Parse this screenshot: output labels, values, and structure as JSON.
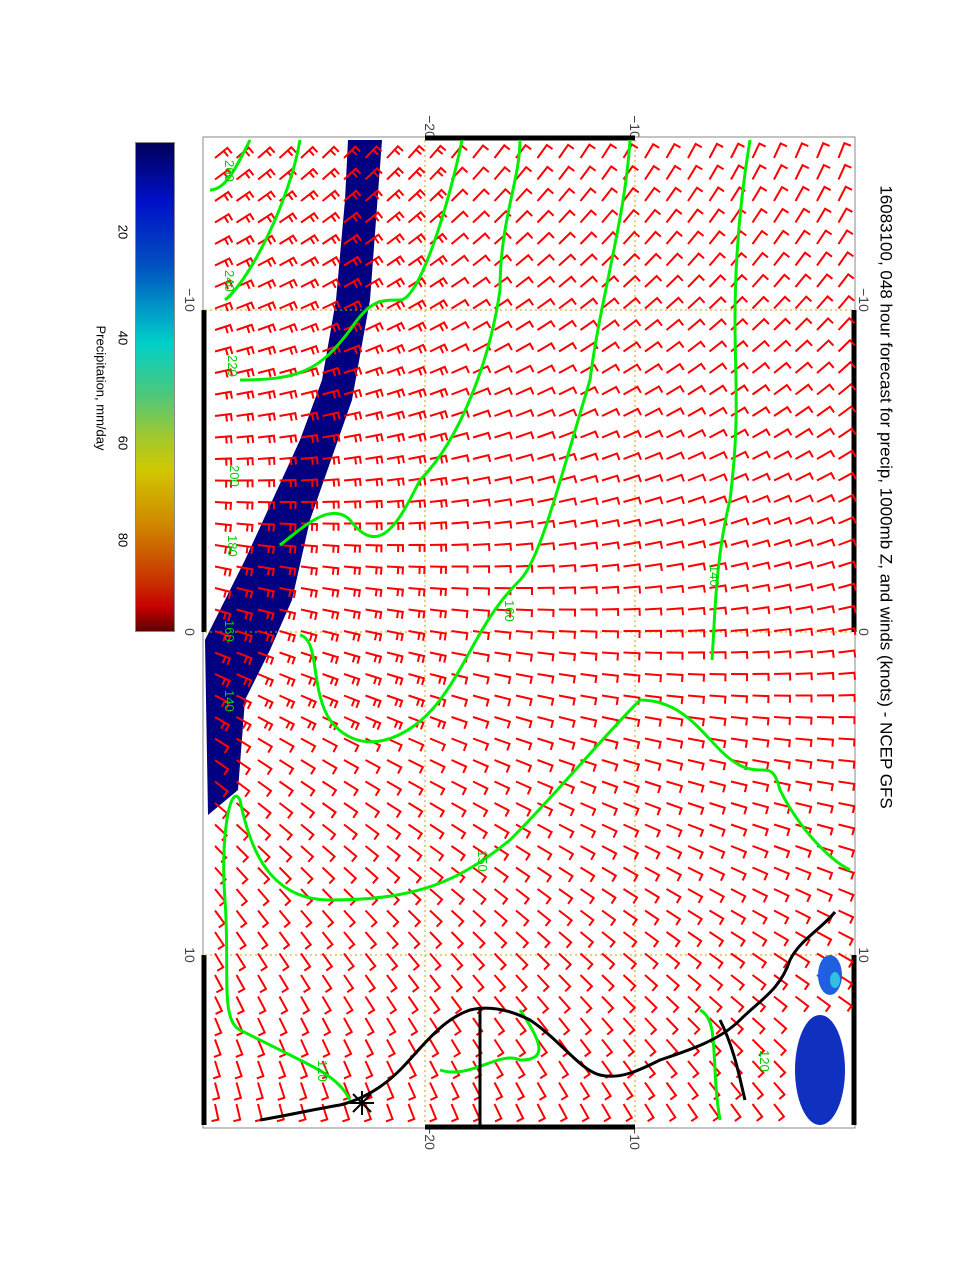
{
  "title": "16083100, 048 hour forecast for precip, 1000mb Z, and winds (knots) - NCEP GFS",
  "axes": {
    "top_ticks": [
      "−20",
      "−10"
    ],
    "bottom_ticks": [
      "−20",
      "−10"
    ],
    "right_ticks": [
      "−10",
      "0",
      "10"
    ],
    "left_ticks": [
      "−10",
      "0",
      "10"
    ]
  },
  "colorbar": {
    "label": "Precipitation, mm/day",
    "ticks": [
      "20",
      "40",
      "60",
      "80"
    ],
    "range": [
      0,
      100
    ]
  },
  "contour_labels": [
    "260",
    "240",
    "220",
    "200",
    "180",
    "160",
    "140",
    "140",
    "160",
    "150",
    "120",
    "120"
  ],
  "colors": {
    "wind": "#ff0000",
    "contour": "#00ee00",
    "precip_heavy": "#000080",
    "coast": "#000000",
    "grid": "#d0a000"
  }
}
